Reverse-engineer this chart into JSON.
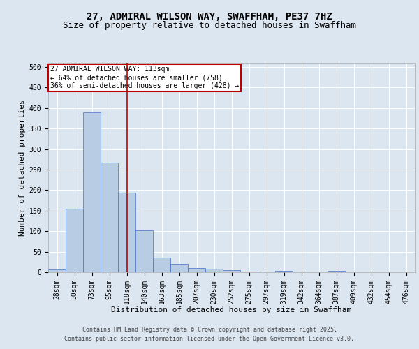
{
  "title_line1": "27, ADMIRAL WILSON WAY, SWAFFHAM, PE37 7HZ",
  "title_line2": "Size of property relative to detached houses in Swaffham",
  "xlabel": "Distribution of detached houses by size in Swaffham",
  "ylabel": "Number of detached properties",
  "bar_labels": [
    "28sqm",
    "50sqm",
    "73sqm",
    "95sqm",
    "118sqm",
    "140sqm",
    "163sqm",
    "185sqm",
    "207sqm",
    "230sqm",
    "252sqm",
    "275sqm",
    "297sqm",
    "319sqm",
    "342sqm",
    "364sqm",
    "387sqm",
    "409sqm",
    "432sqm",
    "454sqm",
    "476sqm"
  ],
  "bar_values": [
    6,
    155,
    390,
    267,
    193,
    102,
    35,
    20,
    11,
    8,
    5,
    1,
    0,
    3,
    0,
    0,
    3,
    0,
    0,
    0,
    0
  ],
  "bar_color": "#b8cce4",
  "bar_edge_color": "#4472c4",
  "vline_x_index": 4,
  "vline_color": "#c00000",
  "annotation_text": "27 ADMIRAL WILSON WAY: 113sqm\n← 64% of detached houses are smaller (758)\n36% of semi-detached houses are larger (428) →",
  "annotation_box_color": "#c00000",
  "annotation_text_color": "#000000",
  "ylim": [
    0,
    510
  ],
  "yticks": [
    0,
    50,
    100,
    150,
    200,
    250,
    300,
    350,
    400,
    450,
    500
  ],
  "background_color": "#dce6f1",
  "axes_background": "#dce6f1",
  "grid_color": "#ffffff",
  "footer_line1": "Contains HM Land Registry data © Crown copyright and database right 2025.",
  "footer_line2": "Contains public sector information licensed under the Open Government Licence v3.0.",
  "title_fontsize": 10,
  "subtitle_fontsize": 9,
  "axis_label_fontsize": 8,
  "tick_fontsize": 7,
  "annotation_fontsize": 7,
  "footer_fontsize": 6
}
